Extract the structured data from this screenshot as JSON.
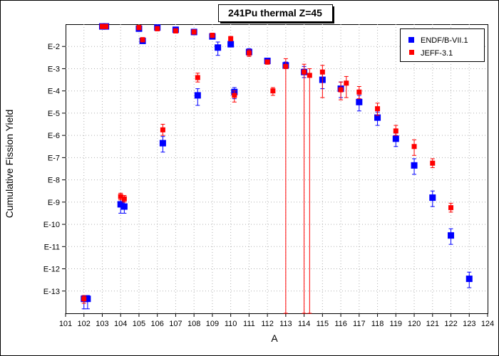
{
  "chart_data": {
    "type": "scatter",
    "title": "241Pu thermal Z=45",
    "xlabel": "A",
    "ylabel": "Cumulative Fission Yield",
    "xlim": [
      101,
      124
    ],
    "ylim": [
      -14,
      -1
    ],
    "y_scale": "log10",
    "grid": true,
    "legend_position": "top-right",
    "x_ticks": [
      "101",
      "102",
      "103",
      "104",
      "105",
      "106",
      "107",
      "108",
      "109",
      "110",
      "111",
      "112",
      "113",
      "114",
      "115",
      "116",
      "117",
      "118",
      "119",
      "120",
      "121",
      "122",
      "123",
      "124"
    ],
    "y_ticks": [
      {
        "value": -2,
        "label": "E-2"
      },
      {
        "value": -3,
        "label": "E-3"
      },
      {
        "value": -4,
        "label": "E-4"
      },
      {
        "value": -5,
        "label": "E-5"
      },
      {
        "value": -6,
        "label": "E-6"
      },
      {
        "value": -7,
        "label": "E-7"
      },
      {
        "value": -8,
        "label": "E-8"
      },
      {
        "value": -9,
        "label": "E-9"
      },
      {
        "value": -10,
        "label": "E-10"
      },
      {
        "value": -11,
        "label": "E-11"
      },
      {
        "value": -12,
        "label": "E-12"
      },
      {
        "value": -13,
        "label": "E-13"
      }
    ],
    "series": [
      {
        "name": "ENDF/B-VII.1",
        "color": "#0000ff",
        "marker": "square",
        "points": [
          {
            "x": 102,
            "y": -13.35,
            "lo": -13.8,
            "hi": -13.2
          },
          {
            "x": 102.2,
            "y": -13.35,
            "lo": -13.8,
            "hi": -13.2
          },
          {
            "x": 103,
            "y": -1.1,
            "lo": -1.2,
            "hi": -1.0
          },
          {
            "x": 103.2,
            "y": -1.1,
            "lo": -1.2,
            "hi": -1.0
          },
          {
            "x": 104,
            "y": -9.1,
            "lo": -9.5,
            "hi": -8.8
          },
          {
            "x": 104.2,
            "y": -9.2,
            "lo": -9.5,
            "hi": -8.9
          },
          {
            "x": 105,
            "y": -1.2,
            "lo": -1.3,
            "hi": -1.1
          },
          {
            "x": 105.2,
            "y": -1.75,
            "lo": -1.85,
            "hi": -1.65
          },
          {
            "x": 106,
            "y": -1.15,
            "lo": -1.25,
            "hi": -1.05
          },
          {
            "x": 106.3,
            "y": -6.35,
            "lo": -6.75,
            "hi": -6.05
          },
          {
            "x": 107,
            "y": -1.25,
            "lo": -1.35,
            "hi": -1.15
          },
          {
            "x": 108,
            "y": -1.35,
            "lo": -1.45,
            "hi": -1.25
          },
          {
            "x": 108.2,
            "y": -4.2,
            "lo": -4.65,
            "hi": -3.9
          },
          {
            "x": 109,
            "y": -1.55,
            "lo": -1.65,
            "hi": -1.45
          },
          {
            "x": 109.3,
            "y": -2.05,
            "lo": -2.4,
            "hi": -1.8
          },
          {
            "x": 110,
            "y": -1.9,
            "lo": -2.0,
            "hi": -1.8
          },
          {
            "x": 110.2,
            "y": -4.05,
            "lo": -4.35,
            "hi": -3.85
          },
          {
            "x": 111,
            "y": -2.25,
            "lo": -2.4,
            "hi": -2.1
          },
          {
            "x": 112,
            "y": -2.65,
            "lo": -2.75,
            "hi": -2.55
          },
          {
            "x": 113,
            "y": -2.85,
            "lo": -3.0,
            "hi": -2.7
          },
          {
            "x": 114,
            "y": -3.15,
            "lo": -3.4,
            "hi": -2.9
          },
          {
            "x": 115,
            "y": -3.5,
            "lo": -3.9,
            "hi": -3.2
          },
          {
            "x": 116,
            "y": -3.9,
            "lo": -4.3,
            "hi": -3.6
          },
          {
            "x": 117,
            "y": -4.5,
            "lo": -4.9,
            "hi": -4.2
          },
          {
            "x": 118,
            "y": -5.2,
            "lo": -5.55,
            "hi": -4.95
          },
          {
            "x": 119,
            "y": -6.15,
            "lo": -6.5,
            "hi": -5.9
          },
          {
            "x": 120,
            "y": -7.35,
            "lo": -7.75,
            "hi": -7.05
          },
          {
            "x": 121,
            "y": -8.8,
            "lo": -9.2,
            "hi": -8.5
          },
          {
            "x": 122,
            "y": -10.5,
            "lo": -10.9,
            "hi": -10.2
          },
          {
            "x": 123,
            "y": -12.45,
            "lo": -12.85,
            "hi": -12.15
          }
        ]
      },
      {
        "name": "JEFF-3.1",
        "color": "#ff0000",
        "marker": "square",
        "points": [
          {
            "x": 102,
            "y": -13.35,
            "lo": -13.55,
            "hi": -13.2
          },
          {
            "x": 103,
            "y": -1.1,
            "lo": -1.2,
            "hi": -1.0
          },
          {
            "x": 103.2,
            "y": -1.1,
            "lo": -1.2,
            "hi": -1.0
          },
          {
            "x": 104,
            "y": -8.75,
            "lo": -8.9,
            "hi": -8.6
          },
          {
            "x": 104.2,
            "y": -8.85,
            "lo": -9.0,
            "hi": -8.7
          },
          {
            "x": 105,
            "y": -1.15,
            "lo": -1.25,
            "hi": -1.05
          },
          {
            "x": 105.2,
            "y": -1.7,
            "lo": -1.8,
            "hi": -1.6
          },
          {
            "x": 106,
            "y": -1.2,
            "lo": -1.3,
            "hi": -1.1
          },
          {
            "x": 106.3,
            "y": -5.75,
            "lo": -6.0,
            "hi": -5.5
          },
          {
            "x": 107,
            "y": -1.3,
            "lo": -1.4,
            "hi": -1.2
          },
          {
            "x": 108,
            "y": -1.35,
            "lo": -1.45,
            "hi": -1.25
          },
          {
            "x": 108.2,
            "y": -3.4,
            "lo": -3.6,
            "hi": -3.2
          },
          {
            "x": 109,
            "y": -1.5,
            "lo": -1.6,
            "hi": -1.4
          },
          {
            "x": 110,
            "y": -1.65,
            "lo": -1.75,
            "hi": -1.55
          },
          {
            "x": 110.2,
            "y": -4.2,
            "lo": -4.5,
            "hi": -4.0
          },
          {
            "x": 111,
            "y": -2.3,
            "lo": -2.45,
            "hi": -2.15
          },
          {
            "x": 112,
            "y": -2.7,
            "lo": -2.8,
            "hi": -2.6
          },
          {
            "x": 112.3,
            "y": -4.0,
            "lo": -4.2,
            "hi": -3.85
          },
          {
            "x": 113,
            "y": -2.9,
            "lo": -14.0,
            "hi": -2.55
          },
          {
            "x": 114,
            "y": -3.15,
            "lo": -14.0,
            "hi": -2.8
          },
          {
            "x": 114.3,
            "y": -3.3,
            "lo": -14.0,
            "hi": -3.0
          },
          {
            "x": 115,
            "y": -3.15,
            "lo": -4.3,
            "hi": -2.85
          },
          {
            "x": 116,
            "y": -3.95,
            "lo": -4.4,
            "hi": -3.6
          },
          {
            "x": 116.3,
            "y": -3.65,
            "lo": -4.3,
            "hi": -3.35
          },
          {
            "x": 117,
            "y": -4.05,
            "lo": -4.35,
            "hi": -3.8
          },
          {
            "x": 118,
            "y": -4.8,
            "lo": -5.1,
            "hi": -4.55
          },
          {
            "x": 119,
            "y": -5.8,
            "lo": -6.0,
            "hi": -5.55
          },
          {
            "x": 120,
            "y": -6.5,
            "lo": -6.9,
            "hi": -6.2
          },
          {
            "x": 121,
            "y": -7.25,
            "lo": -7.45,
            "hi": -7.05
          },
          {
            "x": 122,
            "y": -9.25,
            "lo": -9.45,
            "hi": -9.05
          }
        ]
      }
    ]
  }
}
